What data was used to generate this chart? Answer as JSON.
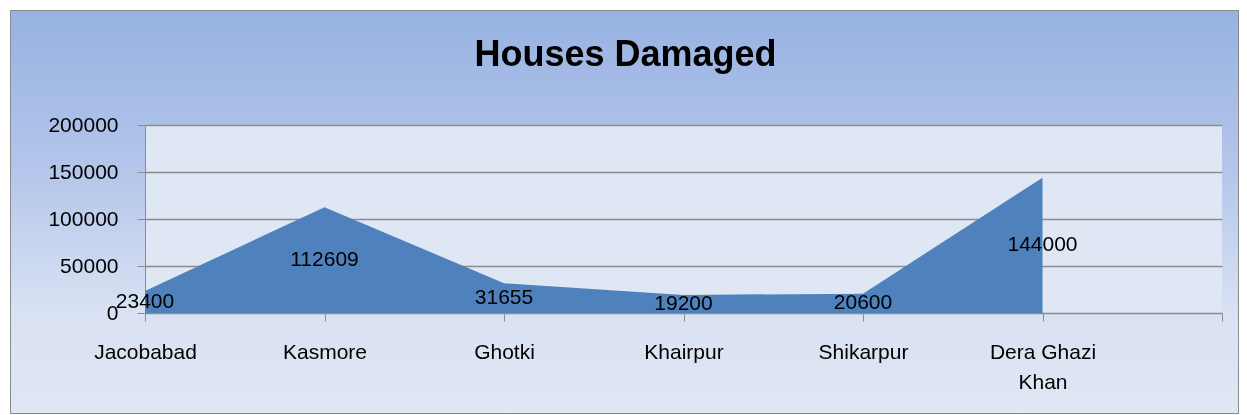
{
  "chart_data": {
    "type": "area",
    "title": "Houses Damaged",
    "categories": [
      "Jacobabad",
      "Kasmore",
      "Ghotki",
      "Khairpur",
      "Shikarpur",
      "Dera Ghazi Khan",
      null
    ],
    "values": [
      23400,
      112609,
      31655,
      19200,
      20600,
      144000,
      null
    ],
    "color": "#4f81bd",
    "ylim": [
      0,
      200000
    ],
    "yticks": [
      0,
      50000,
      100000,
      150000,
      200000
    ],
    "grid": "y",
    "data_labels": true
  }
}
